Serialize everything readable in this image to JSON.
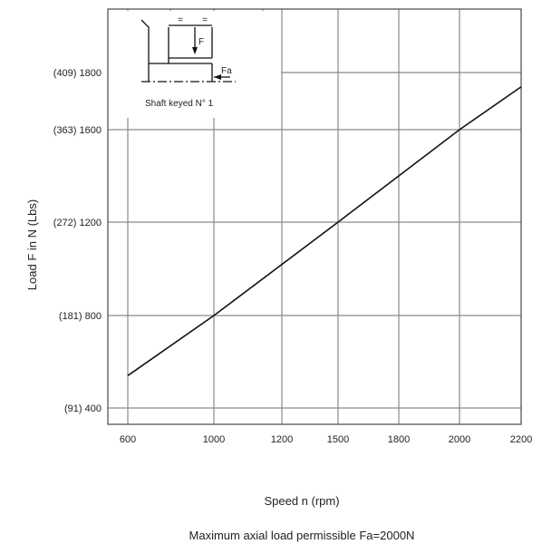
{
  "chart_data": {
    "type": "line",
    "x_ticks": [
      600,
      1000,
      1200,
      1500,
      1800,
      2000,
      2200
    ],
    "x_tick_labels": [
      "600",
      "1000",
      "1200",
      "1500",
      "1800",
      "2000",
      "2200"
    ],
    "y_ticks": [
      {
        "value": 1800,
        "label": "(409)  1800"
      },
      {
        "value": 1600,
        "label": "(363)  1600"
      },
      {
        "value": 1200,
        "label": "(272)  1200"
      },
      {
        "value": 800,
        "label": "(181)      800"
      },
      {
        "value": 400,
        "label": "(91)      400"
      }
    ],
    "xlabel": "Speed n (rpm)",
    "ylabel": "Load F in N (Lbs)",
    "caption": "Maximum axial load permissible Fa=2000N",
    "series": [
      {
        "x": [
          600,
          1000,
          1500,
          2000,
          2200
        ],
        "y": [
          540,
          800,
          1200,
          1600,
          1750
        ]
      }
    ],
    "inset": {
      "label": "Shaft keyed N° 1",
      "force_label": "F",
      "axial_label": "Fa",
      "equal_marks": [
        "=",
        "="
      ]
    },
    "grid": true
  }
}
